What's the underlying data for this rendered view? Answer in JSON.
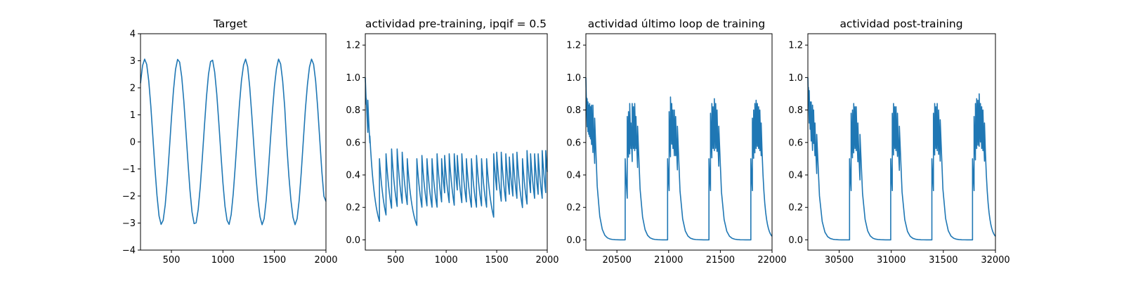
{
  "chart_data": [
    {
      "type": "line",
      "title": "Target",
      "xlabel": "",
      "ylabel": "",
      "xlim": [
        200,
        2000
      ],
      "ylim": [
        -4,
        4
      ],
      "xticks": [
        500,
        1000,
        1500,
        2000
      ],
      "xtick_labels": [
        "500",
        "1000",
        "1500",
        "2000"
      ],
      "yticks": [
        -4,
        -3,
        -2,
        -1,
        0,
        1,
        2,
        3,
        4
      ],
      "ytick_labels": [
        "−4",
        "−3",
        "−2",
        "−1",
        "0",
        "1",
        "2",
        "3",
        "4"
      ],
      "grid": false,
      "series": [
        {
          "color": "#1f77b4",
          "x": [
            200,
            220,
            240,
            260,
            280,
            300,
            320,
            340,
            360,
            380,
            400,
            420,
            440,
            460,
            480,
            500,
            520,
            540,
            560,
            580,
            600,
            620,
            640,
            660,
            680,
            700,
            720,
            740,
            760,
            780,
            800,
            820,
            840,
            860,
            880,
            900,
            920,
            940,
            960,
            980,
            1000,
            1020,
            1040,
            1060,
            1080,
            1100,
            1120,
            1140,
            1160,
            1180,
            1200,
            1220,
            1240,
            1260,
            1280,
            1300,
            1320,
            1340,
            1360,
            1380,
            1400,
            1420,
            1440,
            1460,
            1480,
            1500,
            1520,
            1540,
            1560,
            1580,
            1600,
            1620,
            1640,
            1660,
            1680,
            1700,
            1720,
            1740,
            1760,
            1780,
            1800,
            1820,
            1840,
            1860,
            1880,
            1900,
            1920,
            1940,
            1960,
            1980,
            2000
          ],
          "y": [
            2.17,
            2.82,
            3.06,
            2.87,
            2.26,
            1.33,
            0.19,
            -0.96,
            -1.98,
            -2.74,
            -3.05,
            -2.9,
            -2.33,
            -1.42,
            -0.3,
            0.86,
            1.9,
            2.68,
            3.05,
            2.95,
            2.41,
            1.53,
            0.44,
            -0.71,
            -1.78,
            -2.59,
            -3.02,
            -2.99,
            -2.5,
            -1.66,
            -0.59,
            0.56,
            1.65,
            2.5,
            2.97,
            3.02,
            2.58,
            1.78,
            0.72,
            -0.42,
            -1.51,
            -2.38,
            -2.9,
            -3.05,
            -2.69,
            -1.92,
            -0.88,
            0.27,
            1.37,
            2.27,
            2.84,
            3.06,
            2.78,
            2.03,
            1.0,
            -0.14,
            -1.23,
            -2.15,
            -2.77,
            -3.06,
            -2.84,
            -2.15,
            -1.13,
            0.01,
            1.11,
            2.06,
            2.72,
            3.06,
            2.88,
            2.25,
            1.27,
            -0.13,
            -1.26,
            -2.16,
            -2.79,
            -3.06,
            -2.84,
            -2.16,
            -1.14,
            0.03,
            1.19,
            2.11,
            2.77,
            3.06,
            2.87,
            2.25,
            1.25,
            0.08,
            -1.09,
            -2.01,
            -2.2
          ]
        }
      ]
    },
    {
      "type": "line",
      "title": "actividad pre-training, ipqif = 0.5",
      "xlabel": "",
      "ylabel": "",
      "xlim": [
        200,
        2000
      ],
      "ylim": [
        -0.063,
        1.27
      ],
      "xticks": [
        500,
        1000,
        1500,
        2000
      ],
      "xtick_labels": [
        "500",
        "1000",
        "1500",
        "2000"
      ],
      "yticks": [
        0.0,
        0.2,
        0.4,
        0.6,
        0.8,
        1.0,
        1.2
      ],
      "ytick_labels": [
        "0.0",
        "0.2",
        "0.4",
        "0.6",
        "0.8",
        "1.0",
        "1.2"
      ],
      "grid": false,
      "series": [
        {
          "color": "#1f77b4",
          "spike_train": {
            "start": [
              200,
              1.0
            ],
            "decay_length": 55,
            "spikes": [
              [
                210,
                0.87
              ],
              [
                225,
                0.86
              ],
              [
                245,
                0.64
              ],
              [
                340,
                0.5
              ],
              [
                405,
                0.53
              ],
              [
                460,
                0.56
              ],
              [
                515,
                0.56
              ],
              [
                565,
                0.54
              ],
              [
                615,
                0.5
              ],
              [
                710,
                0.5
              ],
              [
                760,
                0.52
              ],
              [
                810,
                0.5
              ],
              [
                860,
                0.5
              ],
              [
                910,
                0.53
              ],
              [
                955,
                0.5
              ],
              [
                985,
                0.52
              ],
              [
                1030,
                0.53
              ],
              [
                1080,
                0.53
              ],
              [
                1110,
                0.52
              ],
              [
                1155,
                0.53
              ],
              [
                1200,
                0.5
              ],
              [
                1250,
                0.5
              ],
              [
                1300,
                0.52
              ],
              [
                1350,
                0.5
              ],
              [
                1400,
                0.5
              ],
              [
                1470,
                0.53
              ],
              [
                1500,
                0.54
              ],
              [
                1545,
                0.54
              ],
              [
                1590,
                0.53
              ],
              [
                1625,
                0.51
              ],
              [
                1660,
                0.53
              ],
              [
                1700,
                0.54
              ],
              [
                1755,
                0.5
              ],
              [
                1800,
                0.55
              ],
              [
                1835,
                0.53
              ],
              [
                1875,
                0.53
              ],
              [
                1910,
                0.53
              ],
              [
                1950,
                0.55
              ],
              [
                1985,
                0.55
              ]
            ]
          }
        }
      ]
    },
    {
      "type": "line",
      "title": "actividad último loop de training",
      "xlabel": "",
      "ylabel": "",
      "xlim": [
        20200,
        22000
      ],
      "ylim": [
        -0.063,
        1.27
      ],
      "xticks": [
        20500,
        21000,
        21500,
        22000
      ],
      "xtick_labels": [
        "20500",
        "21000",
        "21500",
        "22000"
      ],
      "yticks": [
        0.0,
        0.2,
        0.4,
        0.6,
        0.8,
        1.0,
        1.2
      ],
      "ytick_labels": [
        "0.0",
        "0.2",
        "0.4",
        "0.6",
        "0.8",
        "1.0",
        "1.2"
      ],
      "grid": false,
      "series": [
        {
          "color": "#1f77b4",
          "spike_train": {
            "start": [
              20200,
              1.0
            ],
            "decay_length": 30,
            "spikes": [
              [
                20205,
                0.88
              ],
              [
                20212,
                0.87
              ],
              [
                20220,
                0.85
              ],
              [
                20228,
                0.83
              ],
              [
                20236,
                0.84
              ],
              [
                20245,
                0.82
              ],
              [
                20255,
                0.83
              ],
              [
                20268,
                0.83
              ],
              [
                20285,
                0.75
              ],
              [
                20580,
                0.5
              ],
              [
                20600,
                0.76
              ],
              [
                20612,
                0.79
              ],
              [
                20624,
                0.84
              ],
              [
                20636,
                0.72
              ],
              [
                20648,
                0.84
              ],
              [
                20660,
                0.82
              ],
              [
                20672,
                0.84
              ],
              [
                20684,
                0.76
              ],
              [
                20700,
                0.7
              ],
              [
                20990,
                0.5
              ],
              [
                21005,
                0.79
              ],
              [
                21018,
                0.88
              ],
              [
                21030,
                0.84
              ],
              [
                21042,
                0.8
              ],
              [
                21055,
                0.8
              ],
              [
                21068,
                0.76
              ],
              [
                21085,
                0.7
              ],
              [
                21390,
                0.5
              ],
              [
                21405,
                0.78
              ],
              [
                21418,
                0.84
              ],
              [
                21430,
                0.82
              ],
              [
                21442,
                0.87
              ],
              [
                21455,
                0.84
              ],
              [
                21468,
                0.8
              ],
              [
                21485,
                0.7
              ],
              [
                21795,
                0.5
              ],
              [
                21810,
                0.75
              ],
              [
                21822,
                0.8
              ],
              [
                21834,
                0.84
              ],
              [
                21846,
                0.86
              ],
              [
                21858,
                0.84
              ],
              [
                21870,
                0.82
              ],
              [
                21882,
                0.8
              ],
              [
                21895,
                0.72
              ]
            ]
          }
        }
      ]
    },
    {
      "type": "line",
      "title": "actividad post-training",
      "xlabel": "",
      "ylabel": "",
      "xlim": [
        30200,
        32000
      ],
      "ylim": [
        -0.063,
        1.27
      ],
      "xticks": [
        30500,
        31000,
        31500,
        32000
      ],
      "xtick_labels": [
        "30500",
        "31000",
        "31500",
        "32000"
      ],
      "yticks": [
        0.0,
        0.2,
        0.4,
        0.6,
        0.8,
        1.0,
        1.2
      ],
      "ytick_labels": [
        "0.0",
        "0.2",
        "0.4",
        "0.6",
        "0.8",
        "1.0",
        "1.2"
      ],
      "grid": false,
      "series": [
        {
          "color": "#1f77b4",
          "spike_train": {
            "start": [
              30200,
              1.0
            ],
            "decay_length": 30,
            "spikes": [
              [
                30205,
                0.94
              ],
              [
                30213,
                0.92
              ],
              [
                30222,
                0.85
              ],
              [
                30232,
                0.85
              ],
              [
                30245,
                0.83
              ],
              [
                30255,
                0.8
              ],
              [
                30268,
                0.72
              ],
              [
                30285,
                0.65
              ],
              [
                30600,
                0.5
              ],
              [
                30615,
                0.78
              ],
              [
                30628,
                0.8
              ],
              [
                30640,
                0.84
              ],
              [
                30652,
                0.82
              ],
              [
                30664,
                0.82
              ],
              [
                30680,
                0.72
              ],
              [
                30700,
                0.65
              ],
              [
                30995,
                0.5
              ],
              [
                31010,
                0.78
              ],
              [
                31022,
                0.84
              ],
              [
                31034,
                0.82
              ],
              [
                31046,
                0.82
              ],
              [
                31060,
                0.78
              ],
              [
                31078,
                0.7
              ],
              [
                31390,
                0.5
              ],
              [
                31405,
                0.78
              ],
              [
                31417,
                0.84
              ],
              [
                31429,
                0.82
              ],
              [
                31441,
                0.84
              ],
              [
                31455,
                0.8
              ],
              [
                31470,
                0.74
              ],
              [
                31780,
                0.5
              ],
              [
                31795,
                0.76
              ],
              [
                31808,
                0.84
              ],
              [
                31820,
                0.87
              ],
              [
                31832,
                0.86
              ],
              [
                31844,
                0.9
              ],
              [
                31856,
                0.84
              ],
              [
                31868,
                0.82
              ],
              [
                31880,
                0.8
              ],
              [
                31895,
                0.72
              ]
            ]
          }
        }
      ]
    }
  ]
}
